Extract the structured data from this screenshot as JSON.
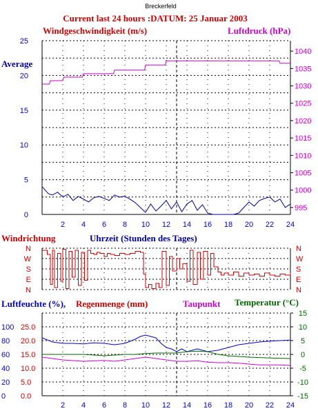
{
  "station": "Breckerfeld",
  "header": "Current last 24 hours :DATUM: 25 Januar 2003",
  "colors": {
    "red": "#cc0000",
    "magenta": "#cc00cc",
    "blue": "#0000cc",
    "green": "#006600",
    "navy": "#000099",
    "grid": "#000000"
  },
  "chart_data": [
    {
      "type": "line",
      "panel": "wind_pressure",
      "left_label": "Windgeschwindigkeit (m/s)",
      "right_label": "Luftdruck (hPa)",
      "annotation": "Average",
      "x_ticks": [
        "2",
        "4",
        "6",
        "8",
        "10",
        "12",
        "14",
        "16",
        "18",
        "20",
        "22",
        "24"
      ],
      "xlim": [
        0,
        24
      ],
      "y_left_ticks": [
        "0",
        "5",
        "10",
        "15",
        "20",
        "25"
      ],
      "ylim_left": [
        0,
        25
      ],
      "y_right_ticks": [
        "995",
        "1000",
        "1005",
        "1010",
        "1015",
        "1020",
        "1025",
        "1030",
        "1035",
        "1040"
      ],
      "ylim_right": [
        993,
        1043
      ],
      "series": [
        {
          "color": "magenta",
          "axis": "right",
          "x": [
            0,
            0.7,
            0.8,
            2.0,
            2.1,
            3.9,
            4.0,
            6.9,
            7.0,
            9.9,
            10.0,
            11.9,
            12.0,
            16.0,
            20.0,
            22.9,
            23.0,
            24.0
          ],
          "y": [
            1030.5,
            1030.5,
            1031.5,
            1031.5,
            1032.5,
            1032.5,
            1033.5,
            1033.5,
            1034.5,
            1034.5,
            1036,
            1036,
            1037.2,
            1037.2,
            1037.2,
            1037.2,
            1036.5,
            1036.5
          ]
        },
        {
          "color": "navy",
          "axis": "left",
          "x": [
            0,
            0.3,
            0.6,
            1,
            1.5,
            2,
            2.5,
            3,
            3.5,
            4,
            4.5,
            5,
            5.5,
            6,
            6.5,
            7,
            7.5,
            8,
            8.5,
            9,
            9.5,
            10,
            10.5,
            11,
            11.5,
            12,
            12.5,
            13,
            13.5,
            14,
            14.5,
            15,
            15.5,
            16,
            16.5,
            17,
            17.5,
            18,
            18.5,
            19,
            19.5,
            20,
            20.5,
            21,
            21.5,
            22,
            22.5,
            23,
            23.5,
            24
          ],
          "y": [
            4,
            3.5,
            3,
            2.8,
            3.2,
            2.5,
            2.9,
            2,
            2.6,
            2.2,
            1.8,
            2.4,
            2.6,
            2.3,
            2,
            2.8,
            2.5,
            2.6,
            2.2,
            1.7,
            1,
            0.3,
            1.5,
            0.5,
            1.2,
            2,
            0.8,
            1.8,
            0.4,
            1.5,
            2,
            0.6,
            1.4,
            0.2,
            0,
            0,
            0,
            0,
            0,
            0.2,
            1,
            1.8,
            1.2,
            2,
            2.3,
            2.5,
            1.8,
            2.2,
            1,
            1.5
          ]
        }
      ]
    },
    {
      "type": "line",
      "panel": "wind_direction",
      "left_label": "Windrichtung",
      "center_label": "Uhrzeit (Stunden des Tages)",
      "direction_ticks": [
        "N",
        "W",
        "S",
        "E",
        "N"
      ],
      "xlim": [
        0,
        24
      ],
      "series": [
        {
          "color": "red",
          "note": "direction index 0=N(top),1=W,2=S,3=E,4=N(bottom)",
          "x": [
            0,
            0.5,
            0.8,
            1.0,
            1.2,
            1.5,
            1.8,
            2.0,
            2.3,
            2.6,
            2.9,
            3.2,
            3.5,
            3.8,
            4.1,
            4.4,
            4.7,
            5.0,
            5.3,
            5.6,
            6.0,
            6.3,
            6.6,
            7.0,
            7.5,
            8.0,
            8.5,
            9.0,
            9.5,
            9.8,
            10.0,
            10.3,
            10.6,
            11.0,
            11.3,
            11.6,
            12.0,
            12.3,
            12.6,
            13.0,
            13.3,
            13.6,
            14.0,
            14.3,
            14.6,
            15.0,
            15.3,
            15.6,
            16.0,
            16.3,
            16.6,
            17.0,
            17.3,
            17.6,
            18.0,
            18.5,
            19.0,
            19.5,
            20.0,
            20.5,
            21.0,
            21.5,
            22.0,
            22.5,
            23.0,
            23.5,
            24.0
          ],
          "y": [
            0.2,
            0.6,
            3.5,
            0.2,
            3.8,
            0.5,
            3.2,
            0.1,
            3.9,
            0.3,
            2.8,
            0.2,
            3.6,
            0.4,
            3.1,
            0.2,
            0.5,
            0.6,
            0.4,
            0.5,
            0.8,
            0.5,
            0.6,
            0.7,
            0.5,
            0.6,
            0.5,
            0.3,
            0.4,
            2.5,
            3.8,
            3.5,
            3.9,
            3.4,
            3.8,
            0.3,
            3.6,
            0.8,
            2.2,
            1.0,
            2.0,
            1.5,
            3.2,
            0.2,
            3.5,
            0.4,
            3.0,
            0.3,
            2.6,
            0.5,
            1.8,
            2.3,
            2.6,
            2.4,
            2.6,
            2.3,
            2.7,
            2.4,
            2.6,
            2.5,
            2.7,
            2.4,
            2.6,
            2.7,
            2.5,
            2.6,
            2.4
          ]
        }
      ]
    },
    {
      "type": "line",
      "panel": "humidity_temperature",
      "humidity_label": "Luftfeuchte (%),",
      "rain_label": "Regenmenge (mm)",
      "dewpoint_label": "Taupunkt",
      "temperature_label": "Temperatur (°C)",
      "x_ticks": [
        "2",
        "4",
        "6",
        "8",
        "10",
        "12",
        "14",
        "16",
        "18",
        "20",
        "22",
        "24"
      ],
      "xlim": [
        0,
        24
      ],
      "y_left1_ticks": [
        "0",
        "20",
        "40",
        "60",
        "80",
        "100"
      ],
      "y_left2_ticks": [
        "0.0",
        "5.0",
        "10.0",
        "15.0",
        "20.0",
        "25.0"
      ],
      "y_right_ticks": [
        "-15",
        "-10",
        "-5",
        "0",
        "5",
        "10",
        "15"
      ],
      "ylim_right": [
        -15,
        15
      ],
      "series": [
        {
          "name": "Luftfeuchte",
          "color": "blue",
          "axis": "right",
          "x": [
            0,
            1,
            2,
            3,
            4,
            5,
            6,
            7,
            8,
            9,
            9.5,
            10,
            10.5,
            11,
            11.5,
            12,
            12.5,
            13,
            13.5,
            14,
            15,
            16,
            17,
            18,
            19,
            20,
            21,
            22,
            23,
            24
          ],
          "y": [
            6,
            4.5,
            4,
            4,
            3.8,
            4.2,
            4,
            3.5,
            4,
            5.5,
            6.5,
            7,
            6.5,
            6,
            4,
            2.5,
            2,
            1,
            2,
            1,
            2,
            1,
            1.5,
            2.5,
            3.5,
            4,
            4.5,
            4.8,
            5,
            5.2
          ]
        },
        {
          "name": "Temperatur",
          "color": "green",
          "axis": "right",
          "x": [
            0,
            2,
            4,
            6,
            8,
            9,
            10,
            11,
            12,
            13,
            14,
            15,
            16,
            17,
            18,
            20,
            22,
            24
          ],
          "y": [
            0,
            0,
            0,
            -0.5,
            0,
            0,
            0.3,
            0.5,
            0.5,
            0.5,
            1,
            1.2,
            1,
            0,
            -0.5,
            -1,
            -1.3,
            -1.5
          ]
        },
        {
          "name": "Taupunkt",
          "color": "magenta",
          "axis": "right",
          "x": [
            0,
            1,
            2,
            4,
            6,
            7,
            8,
            9,
            10,
            11,
            12,
            13,
            14,
            15,
            16,
            17,
            18,
            19,
            20,
            21,
            22,
            23,
            24
          ],
          "y": [
            -1,
            -1.5,
            -2,
            -2.5,
            -2.2,
            -2.5,
            -2,
            -1.5,
            -1,
            -1.5,
            -2,
            -2.5,
            -2.5,
            -2.3,
            -2.8,
            -3,
            -3,
            -3.2,
            -3.5,
            -3.8,
            -3.8,
            -3.8,
            -4
          ]
        }
      ]
    }
  ]
}
